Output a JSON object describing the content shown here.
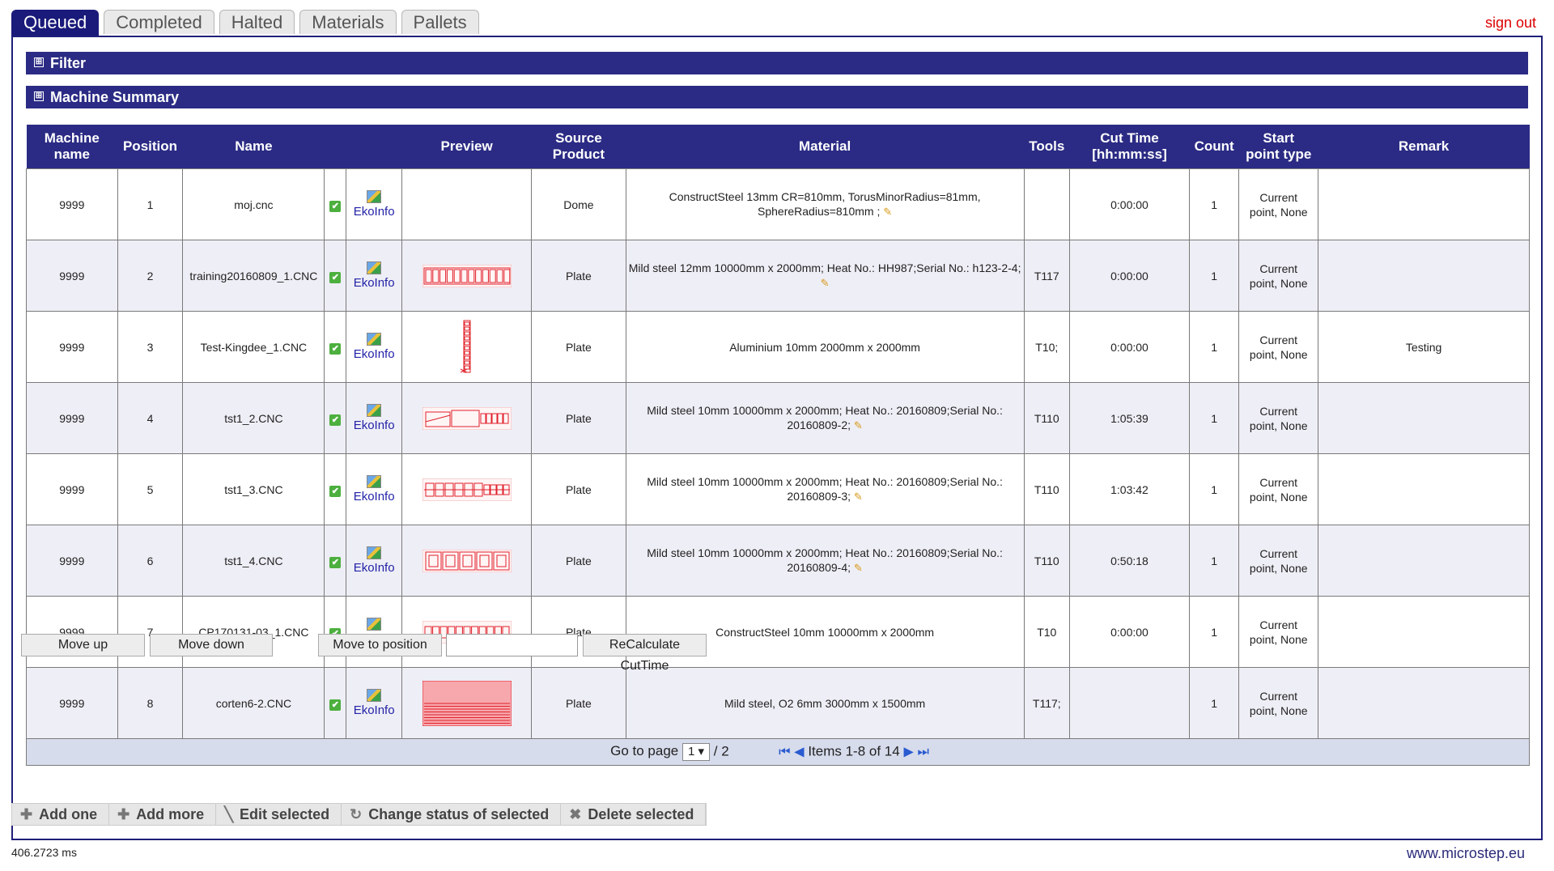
{
  "tabs": [
    {
      "label": "Queued",
      "active": true
    },
    {
      "label": "Completed",
      "active": false
    },
    {
      "label": "Halted",
      "active": false
    },
    {
      "label": "Materials",
      "active": false
    },
    {
      "label": "Pallets",
      "active": false
    }
  ],
  "signout": "sign out",
  "sections": {
    "filter": "Filter",
    "summary": "Machine Summary",
    "expand_glyph": "⊞"
  },
  "table": {
    "headers": {
      "machine_1": "Machine",
      "machine_2": "name",
      "position": "Position",
      "name": "Name",
      "preview": "Preview",
      "source_1": "Source",
      "source_2": "Product",
      "material": "Material",
      "tools": "Tools",
      "cut_1": "Cut Time",
      "cut_2": "[hh:mm:ss]",
      "count": "Count",
      "start_1": "Start",
      "start_2": "point type",
      "remark": "Remark"
    },
    "ekoinfo_label": "EkoInfo",
    "check_glyph": "✔",
    "pencil_glyph": "✎",
    "rows": [
      {
        "machine": "9999",
        "position": "1",
        "name": "moj.cnc",
        "preview": "none",
        "source": "Dome",
        "material": "ConstructSteel 13mm CR=810mm, TorusMinorRadius=81mm, SphereRadius=810mm ;",
        "edit": true,
        "tools": "",
        "cut": "0:00:00",
        "count": "1",
        "start_1": "Current",
        "start_2": "point, None",
        "remark": ""
      },
      {
        "machine": "9999",
        "position": "2",
        "name": "training20160809_1.CNC",
        "preview": "strip",
        "source": "Plate",
        "material": "Mild steel 12mm 10000mm x 2000mm; Heat No.: HH987;Serial No.: h123-2-4;",
        "edit": true,
        "tools": "T117",
        "cut": "0:00:00",
        "count": "1",
        "start_1": "Current",
        "start_2": "point, None",
        "remark": ""
      },
      {
        "machine": "9999",
        "position": "3",
        "name": "Test-Kingdee_1.CNC",
        "preview": "vertical",
        "source": "Plate",
        "material": "Aluminium 10mm 2000mm x 2000mm",
        "edit": false,
        "tools": "T10;",
        "cut": "0:00:00",
        "count": "1",
        "start_1": "Current",
        "start_2": "point, None",
        "remark": "Testing"
      },
      {
        "machine": "9999",
        "position": "4",
        "name": "tst1_2.CNC",
        "preview": "mixed",
        "source": "Plate",
        "material": "Mild steel 10mm 10000mm x 2000mm; Heat No.: 20160809;Serial No.: 20160809-2;",
        "edit": true,
        "tools": "T110",
        "cut": "1:05:39",
        "count": "1",
        "start_1": "Current",
        "start_2": "point, None",
        "remark": ""
      },
      {
        "machine": "9999",
        "position": "5",
        "name": "tst1_3.CNC",
        "preview": "mixed2",
        "source": "Plate",
        "material": "Mild steel 10mm 10000mm x 2000mm; Heat No.: 20160809;Serial No.: 20160809-3;",
        "edit": true,
        "tools": "T110",
        "cut": "1:03:42",
        "count": "1",
        "start_1": "Current",
        "start_2": "point, None",
        "remark": ""
      },
      {
        "machine": "9999",
        "position": "6",
        "name": "tst1_4.CNC",
        "preview": "boxes",
        "source": "Plate",
        "material": "Mild steel 10mm 10000mm x 2000mm; Heat No.: 20160809;Serial No.: 20160809-4;",
        "edit": true,
        "tools": "T110",
        "cut": "0:50:18",
        "count": "1",
        "start_1": "Current",
        "start_2": "point, None",
        "remark": ""
      },
      {
        "machine": "9999",
        "position": "7",
        "name": "CP170131-03_1.CNC",
        "preview": "chain",
        "source": "Plate",
        "material": "ConstructSteel 10mm 10000mm x 2000mm",
        "edit": false,
        "tools": "T10",
        "cut": "0:00:00",
        "count": "1",
        "start_1": "Current",
        "start_2": "point, None",
        "remark": ""
      },
      {
        "machine": "9999",
        "position": "8",
        "name": "corten6-2.CNC",
        "preview": "solid",
        "source": "Plate",
        "material": "Mild steel, O2 6mm 3000mm x 1500mm",
        "edit": false,
        "tools": "T117;",
        "cut": "",
        "count": "1",
        "start_1": "Current",
        "start_2": "point, None",
        "remark": ""
      }
    ]
  },
  "pager": {
    "goto_label": "Go to page",
    "page": "1",
    "total": "/ 2",
    "items": "Items 1-8 of 14",
    "first_glyph": "⏮",
    "prev_glyph": "◀",
    "next_glyph": "▶",
    "last_glyph": "⏭"
  },
  "buttons": {
    "move_up": "Move up",
    "move_down": "Move down",
    "move_to_position": "Move to position",
    "position_input": "",
    "recalculate": "ReCalculate CutTime"
  },
  "actions": [
    {
      "icon": "✚",
      "label": "Add one",
      "name": "add-one-button",
      "icon_name": "plus-icon"
    },
    {
      "icon": "✚",
      "label": "Add more",
      "name": "add-more-button",
      "icon_name": "plus-icon"
    },
    {
      "icon": "╲",
      "label": "Edit selected",
      "name": "edit-selected-button",
      "icon_name": "pencil-icon"
    },
    {
      "icon": "↻",
      "label": "Change status of selected",
      "name": "change-status-button",
      "icon_name": "refresh-icon"
    },
    {
      "icon": "✖",
      "label": "Delete selected",
      "name": "delete-selected-button",
      "icon_name": "delete-icon"
    }
  ],
  "footer": {
    "timing": "406.2723 ms",
    "site": "www.microstep.eu"
  },
  "colors": {
    "header_bg": "#2b2b85",
    "tab_active": "#1a1a7a",
    "preview_red": "#e0202a",
    "link": "#2323a8"
  }
}
